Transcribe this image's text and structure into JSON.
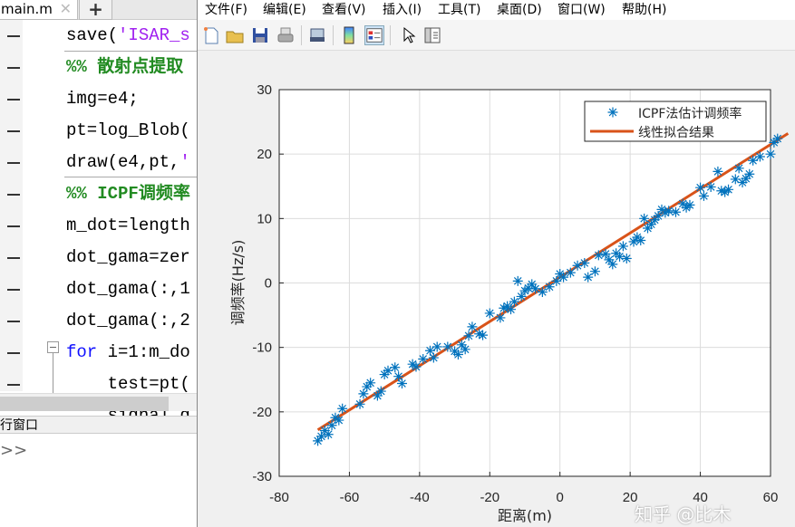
{
  "editor": {
    "tab_name": "main.m",
    "tab_close": "✕",
    "tab_add": "+",
    "lines": [
      {
        "parts": [
          {
            "t": "save(",
            "c": ""
          },
          {
            "t": "'ISAR_s",
            "c": "str"
          }
        ]
      },
      {
        "parts": [
          {
            "t": "%% 散射点提取",
            "c": "cmt"
          }
        ]
      },
      {
        "parts": [
          {
            "t": "img=e4;",
            "c": ""
          }
        ]
      },
      {
        "parts": [
          {
            "t": "pt=log_Blob(",
            "c": ""
          }
        ]
      },
      {
        "parts": [
          {
            "t": "draw(e4,pt,",
            "c": ""
          },
          {
            "t": "'",
            "c": "str"
          }
        ]
      },
      {
        "parts": [
          {
            "t": "%% ICPF调频率",
            "c": "cmt"
          }
        ]
      },
      {
        "parts": [
          {
            "t": "m_dot=length",
            "c": ""
          }
        ]
      },
      {
        "parts": [
          {
            "t": "dot_gama=zer",
            "c": ""
          }
        ]
      },
      {
        "parts": [
          {
            "t": "dot_gama(:,1",
            "c": ""
          }
        ]
      },
      {
        "parts": [
          {
            "t": "dot_gama(:,2",
            "c": ""
          }
        ]
      },
      {
        "parts": [
          {
            "t": "for",
            "c": "kw"
          },
          {
            "t": " i=1:m_do",
            "c": ""
          }
        ]
      },
      {
        "parts": [
          {
            "t": "    test=pt(",
            "c": ""
          }
        ]
      },
      {
        "parts": [
          {
            "t": "    signal_g",
            "c": ""
          }
        ]
      }
    ],
    "command_window_label": "行窗口",
    "prompt": ">>"
  },
  "figure": {
    "menu": [
      "文件(F)",
      "编辑(E)",
      "查看(V)",
      "插入(I)",
      "工具(T)",
      "桌面(D)",
      "窗口(W)",
      "帮助(H)"
    ],
    "toolbar": [
      "new-figure",
      "open-file",
      "save",
      "print",
      "link-plot",
      "colorbar",
      "legend",
      "pointer",
      "property-inspector"
    ]
  },
  "chart_data": {
    "type": "scatter",
    "xlabel": "距离(m)",
    "ylabel": "调频率(Hz/s)",
    "xlim": [
      -80,
      60
    ],
    "ylim": [
      -30,
      30
    ],
    "xticks": [
      "-80",
      "-60",
      "-40",
      "-20",
      "0",
      "20",
      "40",
      "60"
    ],
    "yticks": [
      "-30",
      "-20",
      "-10",
      "0",
      "10",
      "20",
      "30"
    ],
    "grid": true,
    "legend_position": "top-right",
    "colors": {
      "points": "#0072BD",
      "fit": "#D95319"
    },
    "series": [
      {
        "name": "ICPF法估计调频率",
        "marker": "asterisk",
        "points": [
          [
            -69,
            -24.5
          ],
          [
            -68,
            -23.8
          ],
          [
            -67,
            -22.9
          ],
          [
            -66,
            -23.5
          ],
          [
            -65,
            -22.1
          ],
          [
            -64,
            -20.9
          ],
          [
            -63,
            -21.3
          ],
          [
            -62,
            -19.5
          ],
          [
            -57,
            -18.8
          ],
          [
            -56,
            -17.2
          ],
          [
            -55,
            -16.1
          ],
          [
            -54,
            -15.5
          ],
          [
            -52,
            -17.5
          ],
          [
            -51,
            -16.8
          ],
          [
            -50,
            -14.2
          ],
          [
            -49,
            -13.6
          ],
          [
            -47,
            -13.1
          ],
          [
            -46,
            -14.5
          ],
          [
            -45,
            -15.6
          ],
          [
            -42,
            -12.6
          ],
          [
            -41,
            -13.0
          ],
          [
            -39,
            -11.8
          ],
          [
            -37,
            -10.5
          ],
          [
            -36,
            -11.6
          ],
          [
            -35,
            -9.9
          ],
          [
            -32,
            -9.9
          ],
          [
            -30,
            -10.6
          ],
          [
            -29,
            -11.1
          ],
          [
            -28,
            -9.6
          ],
          [
            -27,
            -10.3
          ],
          [
            -26,
            -8.2
          ],
          [
            -25,
            -6.8
          ],
          [
            -23,
            -7.9
          ],
          [
            -22,
            -8.1
          ],
          [
            -20,
            -4.7
          ],
          [
            -17,
            -5.4
          ],
          [
            -16,
            -3.9
          ],
          [
            -15,
            -3.6
          ],
          [
            -14,
            -4.1
          ],
          [
            -13,
            -2.9
          ],
          [
            -12,
            0.3
          ],
          [
            -11,
            -2.1
          ],
          [
            -10,
            -1.2
          ],
          [
            -9,
            -0.8
          ],
          [
            -8,
            -0.2
          ],
          [
            -7,
            -0.9
          ],
          [
            -5,
            -1.4
          ],
          [
            -3,
            -0.6
          ],
          [
            -1,
            0.3
          ],
          [
            0,
            1.4
          ],
          [
            1,
            0.9
          ],
          [
            3,
            1.6
          ],
          [
            5,
            2.7
          ],
          [
            7,
            3.1
          ],
          [
            8,
            0.9
          ],
          [
            10,
            1.8
          ],
          [
            11,
            4.3
          ],
          [
            13,
            4.5
          ],
          [
            14,
            3.6
          ],
          [
            15,
            2.9
          ],
          [
            16,
            4.6
          ],
          [
            17,
            4.1
          ],
          [
            18,
            5.7
          ],
          [
            19,
            3.8
          ],
          [
            21,
            6.4
          ],
          [
            22,
            7.1
          ],
          [
            23,
            6.6
          ],
          [
            24,
            10.0
          ],
          [
            25,
            8.5
          ],
          [
            26,
            9.1
          ],
          [
            27,
            9.8
          ],
          [
            28,
            10.4
          ],
          [
            29,
            11.4
          ],
          [
            30,
            10.9
          ],
          [
            31,
            11.2
          ],
          [
            33,
            11.0
          ],
          [
            35,
            12.3
          ],
          [
            36,
            11.7
          ],
          [
            37,
            12.1
          ],
          [
            40,
            14.8
          ],
          [
            41,
            13.5
          ],
          [
            43,
            14.9
          ],
          [
            45,
            17.3
          ],
          [
            46,
            14.3
          ],
          [
            47,
            14.1
          ],
          [
            48,
            14.5
          ],
          [
            50,
            16.1
          ],
          [
            51,
            17.8
          ],
          [
            52,
            15.6
          ],
          [
            53,
            16.2
          ],
          [
            54,
            16.9
          ],
          [
            55,
            19.0
          ],
          [
            57,
            19.6
          ],
          [
            60,
            20.0
          ],
          [
            61,
            21.8
          ],
          [
            62,
            22.4
          ]
        ]
      },
      {
        "name": "线性拟合结果",
        "line": true,
        "points": [
          [
            -69,
            -22.8
          ],
          [
            65,
            23.2
          ]
        ]
      }
    ]
  },
  "watermark": "知乎 @比木"
}
